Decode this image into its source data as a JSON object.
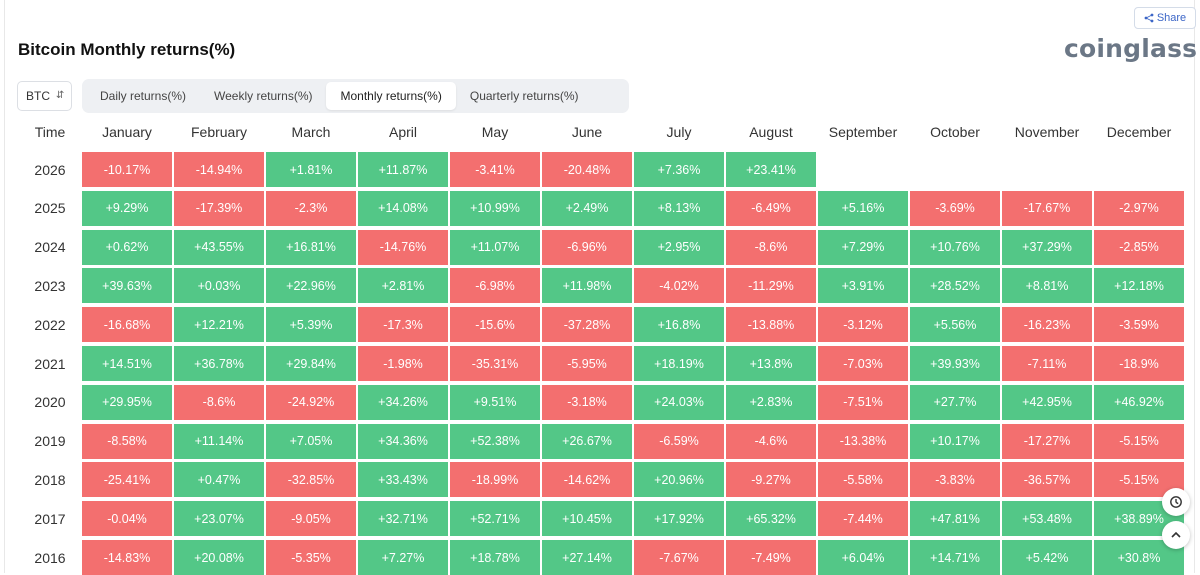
{
  "header": {
    "title": "Bitcoin Monthly returns(%)",
    "share_label": "Share",
    "logo": "coinglass"
  },
  "controls": {
    "coin": "BTC",
    "tabs": [
      "Daily returns(%)",
      "Weekly returns(%)",
      "Monthly returns(%)",
      "Quarterly returns(%)"
    ],
    "active_tab": 2
  },
  "colors": {
    "positive": "#53c787",
    "negative": "#f36f6f"
  },
  "icons": [
    "share-icon",
    "chevron-updown-icon",
    "history-icon",
    "chevron-up-icon"
  ],
  "chart_data": {
    "type": "heatmap",
    "row_header": "Time",
    "columns": [
      "January",
      "February",
      "March",
      "April",
      "May",
      "June",
      "July",
      "August",
      "September",
      "October",
      "November",
      "December"
    ],
    "rows": [
      {
        "year": "2026",
        "values": [
          "-10.17%",
          "-14.94%",
          "+1.81%",
          "+11.87%",
          "-3.41%",
          "-20.48%",
          "+7.36%",
          "+23.41%",
          "",
          "",
          "",
          ""
        ]
      },
      {
        "year": "2025",
        "values": [
          "+9.29%",
          "-17.39%",
          "-2.3%",
          "+14.08%",
          "+10.99%",
          "+2.49%",
          "+8.13%",
          "-6.49%",
          "+5.16%",
          "-3.69%",
          "-17.67%",
          "-2.97%"
        ]
      },
      {
        "year": "2024",
        "values": [
          "+0.62%",
          "+43.55%",
          "+16.81%",
          "-14.76%",
          "+11.07%",
          "-6.96%",
          "+2.95%",
          "-8.6%",
          "+7.29%",
          "+10.76%",
          "+37.29%",
          "-2.85%"
        ]
      },
      {
        "year": "2023",
        "values": [
          "+39.63%",
          "+0.03%",
          "+22.96%",
          "+2.81%",
          "-6.98%",
          "+11.98%",
          "-4.02%",
          "-11.29%",
          "+3.91%",
          "+28.52%",
          "+8.81%",
          "+12.18%"
        ]
      },
      {
        "year": "2022",
        "values": [
          "-16.68%",
          "+12.21%",
          "+5.39%",
          "-17.3%",
          "-15.6%",
          "-37.28%",
          "+16.8%",
          "-13.88%",
          "-3.12%",
          "+5.56%",
          "-16.23%",
          "-3.59%"
        ]
      },
      {
        "year": "2021",
        "values": [
          "+14.51%",
          "+36.78%",
          "+29.84%",
          "-1.98%",
          "-35.31%",
          "-5.95%",
          "+18.19%",
          "+13.8%",
          "-7.03%",
          "+39.93%",
          "-7.11%",
          "-18.9%"
        ]
      },
      {
        "year": "2020",
        "values": [
          "+29.95%",
          "-8.6%",
          "-24.92%",
          "+34.26%",
          "+9.51%",
          "-3.18%",
          "+24.03%",
          "+2.83%",
          "-7.51%",
          "+27.7%",
          "+42.95%",
          "+46.92%"
        ]
      },
      {
        "year": "2019",
        "values": [
          "-8.58%",
          "+11.14%",
          "+7.05%",
          "+34.36%",
          "+52.38%",
          "+26.67%",
          "-6.59%",
          "-4.6%",
          "-13.38%",
          "+10.17%",
          "-17.27%",
          "-5.15%"
        ]
      },
      {
        "year": "2018",
        "values": [
          "-25.41%",
          "+0.47%",
          "-32.85%",
          "+33.43%",
          "-18.99%",
          "-14.62%",
          "+20.96%",
          "-9.27%",
          "-5.58%",
          "-3.83%",
          "-36.57%",
          "-5.15%"
        ]
      },
      {
        "year": "2017",
        "values": [
          "-0.04%",
          "+23.07%",
          "-9.05%",
          "+32.71%",
          "+52.71%",
          "+10.45%",
          "+17.92%",
          "+65.32%",
          "-7.44%",
          "+47.81%",
          "+53.48%",
          "+38.89%"
        ]
      },
      {
        "year": "2016",
        "values": [
          "-14.83%",
          "+20.08%",
          "-5.35%",
          "+7.27%",
          "+18.78%",
          "+27.14%",
          "-7.67%",
          "-7.49%",
          "+6.04%",
          "+14.71%",
          "+5.42%",
          "+30.8%"
        ]
      }
    ]
  }
}
